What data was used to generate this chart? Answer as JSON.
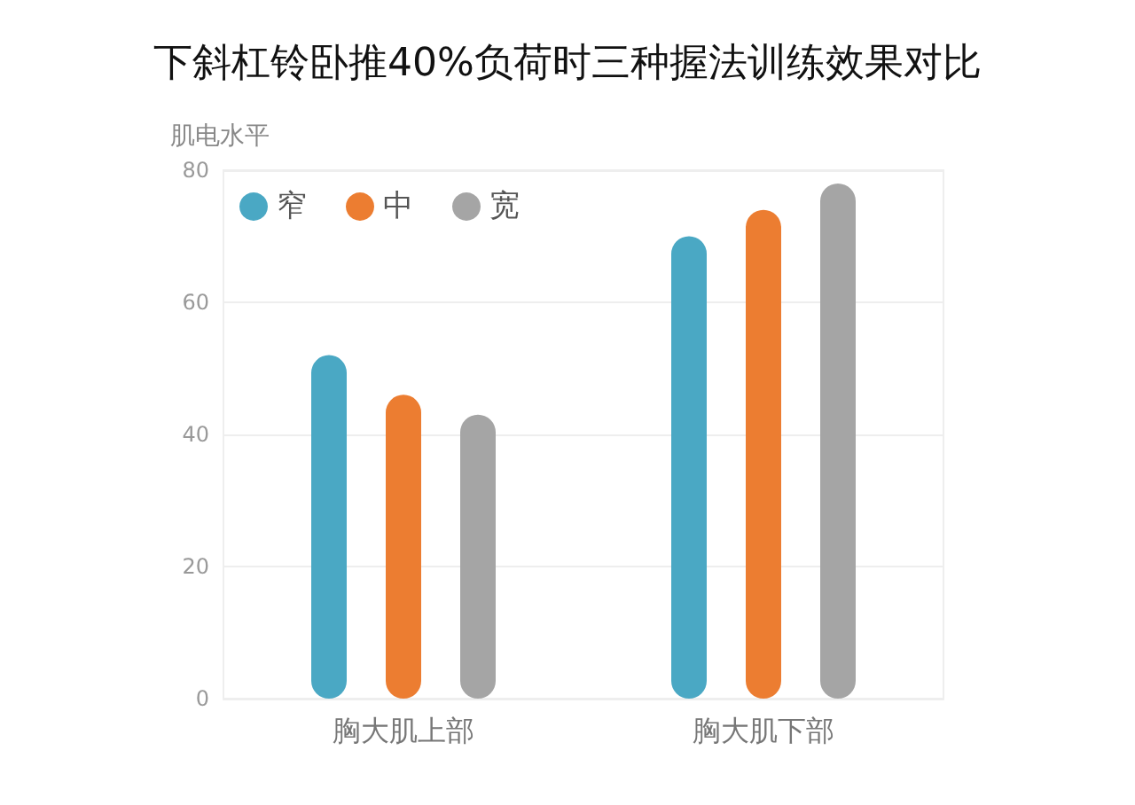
{
  "chart_data": {
    "type": "bar",
    "title": "下斜杠铃卧推40%负荷时三种握法训练效果对比",
    "ylabel": "肌电水平",
    "categories": [
      "胸大肌上部",
      "胸大肌下部"
    ],
    "series": [
      {
        "name": "窄",
        "color": "#4aa8c4",
        "values": [
          52,
          70
        ]
      },
      {
        "name": "中",
        "color": "#ec7d31",
        "values": [
          46,
          74
        ]
      },
      {
        "name": "宽",
        "color": "#a5a5a5",
        "values": [
          43,
          78
        ]
      }
    ],
    "ylim": [
      0,
      80
    ],
    "yticks": [
      0,
      20,
      40,
      60,
      80
    ],
    "grid": "y",
    "legend": "top left"
  }
}
